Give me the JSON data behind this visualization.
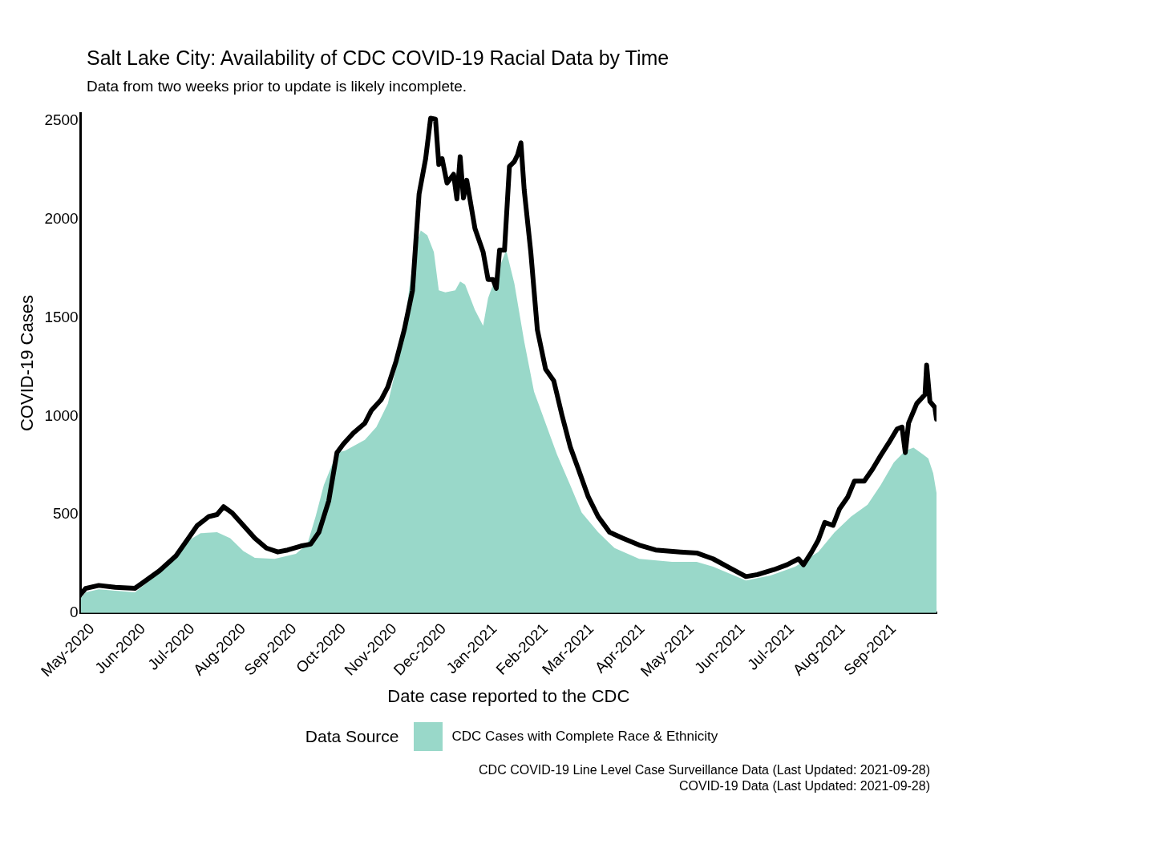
{
  "chart_data": {
    "type": "line",
    "title": "Salt Lake City: Availability of CDC COVID-19 Racial Data by Time",
    "subtitle": "Data from two weeks prior to update is likely incomplete.",
    "xlabel": "Date case reported to the CDC",
    "ylabel": "COVID-19 Cases",
    "legend_title": "Data Source",
    "legend": "bottom",
    "grid": false,
    "marker": "none",
    "xlim": [
      "2020-04-24",
      "2021-09-27"
    ],
    "ylim": [
      0,
      2540
    ],
    "yticks": [
      0,
      500,
      1000,
      1500,
      2000,
      2500
    ],
    "xticks": [
      {
        "value": "2020-05-01",
        "label": "May-2020"
      },
      {
        "value": "2020-06-01",
        "label": "Jun-2020"
      },
      {
        "value": "2020-07-01",
        "label": "Jul-2020"
      },
      {
        "value": "2020-08-01",
        "label": "Aug-2020"
      },
      {
        "value": "2020-09-01",
        "label": "Sep-2020"
      },
      {
        "value": "2020-10-01",
        "label": "Oct-2020"
      },
      {
        "value": "2020-11-01",
        "label": "Nov-2020"
      },
      {
        "value": "2020-12-01",
        "label": "Dec-2020"
      },
      {
        "value": "2021-01-01",
        "label": "Jan-2021"
      },
      {
        "value": "2021-02-01",
        "label": "Feb-2021"
      },
      {
        "value": "2021-03-01",
        "label": "Mar-2021"
      },
      {
        "value": "2021-04-01",
        "label": "Apr-2021"
      },
      {
        "value": "2021-05-01",
        "label": "May-2021"
      },
      {
        "value": "2021-06-01",
        "label": "Jun-2021"
      },
      {
        "value": "2021-07-01",
        "label": "Jul-2021"
      },
      {
        "value": "2021-08-01",
        "label": "Aug-2021"
      },
      {
        "value": "2021-09-01",
        "label": "Sep-2021"
      }
    ],
    "series": [
      {
        "name": "CDC Cases with Complete Race & Ethnicity",
        "type": "area",
        "color": "#99d8c9",
        "x": [
          "2020-04-24",
          "2020-04-27",
          "2020-05-05",
          "2020-05-27",
          "2020-06-11",
          "2020-06-21",
          "2020-06-29",
          "2020-07-06",
          "2020-07-16",
          "2020-07-24",
          "2020-08-01",
          "2020-08-08",
          "2020-08-20",
          "2020-09-02",
          "2020-09-09",
          "2020-09-14",
          "2020-09-19",
          "2020-09-27",
          "2020-10-02",
          "2020-10-14",
          "2020-10-21",
          "2020-10-28",
          "2020-11-03",
          "2020-11-08",
          "2020-11-13",
          "2020-11-17",
          "2020-11-21",
          "2020-11-25",
          "2020-11-28",
          "2020-12-02",
          "2020-12-08",
          "2020-12-11",
          "2020-12-14",
          "2020-12-20",
          "2020-12-25",
          "2020-12-28",
          "2021-01-02",
          "2021-01-08",
          "2021-01-13",
          "2021-01-19",
          "2021-01-25",
          "2021-02-01",
          "2021-02-08",
          "2021-02-16",
          "2021-02-23",
          "2021-03-05",
          "2021-03-15",
          "2021-03-30",
          "2021-04-19",
          "2021-05-04",
          "2021-05-14",
          "2021-06-03",
          "2021-06-18",
          "2021-07-03",
          "2021-07-17",
          "2021-07-27",
          "2021-08-06",
          "2021-08-16",
          "2021-08-24",
          "2021-09-01",
          "2021-09-08",
          "2021-09-13",
          "2021-09-19",
          "2021-09-22",
          "2021-09-25",
          "2021-09-27"
        ],
        "values": [
          75,
          105,
          120,
          105,
          205,
          285,
          370,
          405,
          410,
          380,
          315,
          280,
          275,
          300,
          350,
          490,
          650,
          815,
          825,
          880,
          945,
          1065,
          1280,
          1520,
          1835,
          1945,
          1920,
          1835,
          1640,
          1630,
          1640,
          1685,
          1670,
          1540,
          1460,
          1600,
          1715,
          1845,
          1675,
          1380,
          1125,
          965,
          805,
          650,
          510,
          410,
          330,
          275,
          260,
          260,
          235,
          165,
          190,
          235,
          310,
          410,
          490,
          550,
          650,
          765,
          825,
          840,
          805,
          785,
          710,
          610
        ]
      },
      {
        "color": "#000000",
        "x": [
          "2020-04-24",
          "2020-04-27",
          "2020-05-05",
          "2020-05-15",
          "2020-05-27",
          "2020-06-01",
          "2020-06-11",
          "2020-06-21",
          "2020-06-29",
          "2020-07-04",
          "2020-07-11",
          "2020-07-16",
          "2020-07-20",
          "2020-07-25",
          "2020-08-01",
          "2020-08-08",
          "2020-08-15",
          "2020-08-22",
          "2020-08-28",
          "2020-09-05",
          "2020-09-11",
          "2020-09-16",
          "2020-09-22",
          "2020-09-27",
          "2020-10-01",
          "2020-10-07",
          "2020-10-14",
          "2020-10-18",
          "2020-10-24",
          "2020-10-28",
          "2020-11-02",
          "2020-11-07",
          "2020-11-12",
          "2020-11-16",
          "2020-11-20",
          "2020-11-23",
          "2020-11-26",
          "2020-11-28",
          "2020-11-30",
          "2020-12-03",
          "2020-12-07",
          "2020-12-09",
          "2020-12-11",
          "2020-12-13",
          "2020-12-15",
          "2020-12-20",
          "2020-12-25",
          "2020-12-28",
          "2020-12-31",
          "2021-01-02",
          "2021-01-04",
          "2021-01-07",
          "2021-01-10",
          "2021-01-13",
          "2021-01-15",
          "2021-01-17",
          "2021-01-19",
          "2021-01-23",
          "2021-01-27",
          "2021-02-01",
          "2021-02-06",
          "2021-02-11",
          "2021-02-16",
          "2021-02-21",
          "2021-02-27",
          "2021-03-05",
          "2021-03-12",
          "2021-03-20",
          "2021-03-30",
          "2021-04-09",
          "2021-04-24",
          "2021-05-04",
          "2021-05-14",
          "2021-05-24",
          "2021-06-03",
          "2021-06-10",
          "2021-06-20",
          "2021-06-28",
          "2021-07-05",
          "2021-07-08",
          "2021-07-13",
          "2021-07-17",
          "2021-07-21",
          "2021-07-26",
          "2021-07-30",
          "2021-08-04",
          "2021-08-08",
          "2021-08-14",
          "2021-08-19",
          "2021-08-24",
          "2021-08-29",
          "2021-09-03",
          "2021-09-06",
          "2021-09-08",
          "2021-09-10",
          "2021-09-15",
          "2021-09-20",
          "2021-09-21",
          "2021-09-23",
          "2021-09-26",
          "2021-09-27"
        ],
        "values": [
          95,
          125,
          140,
          130,
          125,
          155,
          215,
          290,
          385,
          445,
          490,
          500,
          540,
          510,
          445,
          380,
          330,
          310,
          320,
          340,
          350,
          410,
          570,
          815,
          860,
          915,
          965,
          1030,
          1085,
          1150,
          1280,
          1440,
          1640,
          2130,
          2310,
          2515,
          2510,
          2280,
          2310,
          2185,
          2230,
          2105,
          2320,
          2110,
          2200,
          1955,
          1835,
          1695,
          1695,
          1650,
          1845,
          1845,
          2270,
          2295,
          2330,
          2390,
          2150,
          1835,
          1440,
          1240,
          1180,
          1005,
          845,
          730,
          590,
          490,
          410,
          380,
          345,
          320,
          310,
          305,
          275,
          230,
          185,
          195,
          220,
          245,
          275,
          245,
          310,
          370,
          460,
          445,
          530,
          590,
          670,
          670,
          730,
          800,
          865,
          935,
          945,
          815,
          965,
          1065,
          1110,
          1260,
          1075,
          1045,
          985
        ]
      }
    ],
    "annotations": [
      "CDC COVID-19 Line Level Case Surveillance Data (Last Updated: 2021-09-28)",
      "COVID-19 Data (Last Updated: 2021-09-28)"
    ]
  }
}
